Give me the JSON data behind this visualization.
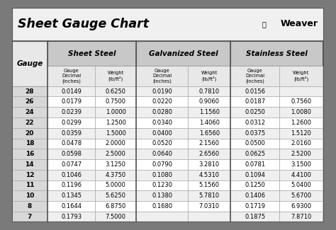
{
  "title": "Sheet Gauge Chart",
  "weaver_text": "Weaver",
  "gauges": [
    "28",
    "26",
    "24",
    "22",
    "20",
    "18",
    "16",
    "14",
    "12",
    "11",
    "10",
    "8",
    "7"
  ],
  "sheet_steel_dec": [
    "0.0149",
    "0.0179",
    "0.0239",
    "0.0299",
    "0.0359",
    "0.0478",
    "0.0598",
    "0.0747",
    "0.1046",
    "0.1196",
    "0.1345",
    "0.1644",
    "0.1793"
  ],
  "sheet_steel_wt": [
    "0.6250",
    "0.7500",
    "1.0000",
    "1.2500",
    "1.5000",
    "2.0000",
    "2.5000",
    "3.1250",
    "4.3750",
    "5.0000",
    "5.6250",
    "6.8750",
    "7.5000"
  ],
  "galv_dec": [
    "0.0190",
    "0.0220",
    "0.0280",
    "0.0340",
    "0.0400",
    "0.0520",
    "0.0640",
    "0.0790",
    "0.1080",
    "0.1230",
    "0.1380",
    "0.1680",
    ""
  ],
  "galv_wt": [
    "0.7810",
    "0.9060",
    "1.1560",
    "1.4060",
    "1.6560",
    "2.1560",
    "2.6560",
    "3.2810",
    "4.5310",
    "5.1560",
    "5.7810",
    "7.0310",
    ""
  ],
  "stain_dec": [
    "0.0156",
    "0.0187",
    "0.0250",
    "0.0312",
    "0.0375",
    "0.0500",
    "0.0625",
    "0.0781",
    "0.1094",
    "0.1250",
    "0.1406",
    "0.1719",
    "0.1875"
  ],
  "stain_wt": [
    "",
    "0.7560",
    "1.0080",
    "1.2600",
    "1.5120",
    "2.0160",
    "2.5200",
    "3.1500",
    "4.4100",
    "5.0400",
    "5.6700",
    "6.9300",
    "7.8710"
  ],
  "outer_bg": "#7a7a7a",
  "inner_bg": "#ffffff",
  "title_bg": "#f0f0f0",
  "col_header_bg": "#c8c8c8",
  "sub_header_bg": "#e8e8e8",
  "gauge_col_bg": "#d8d8d8",
  "row_even_bg": "#efefef",
  "row_odd_bg": "#ffffff",
  "border_dark": "#555555",
  "border_light": "#aaaaaa"
}
